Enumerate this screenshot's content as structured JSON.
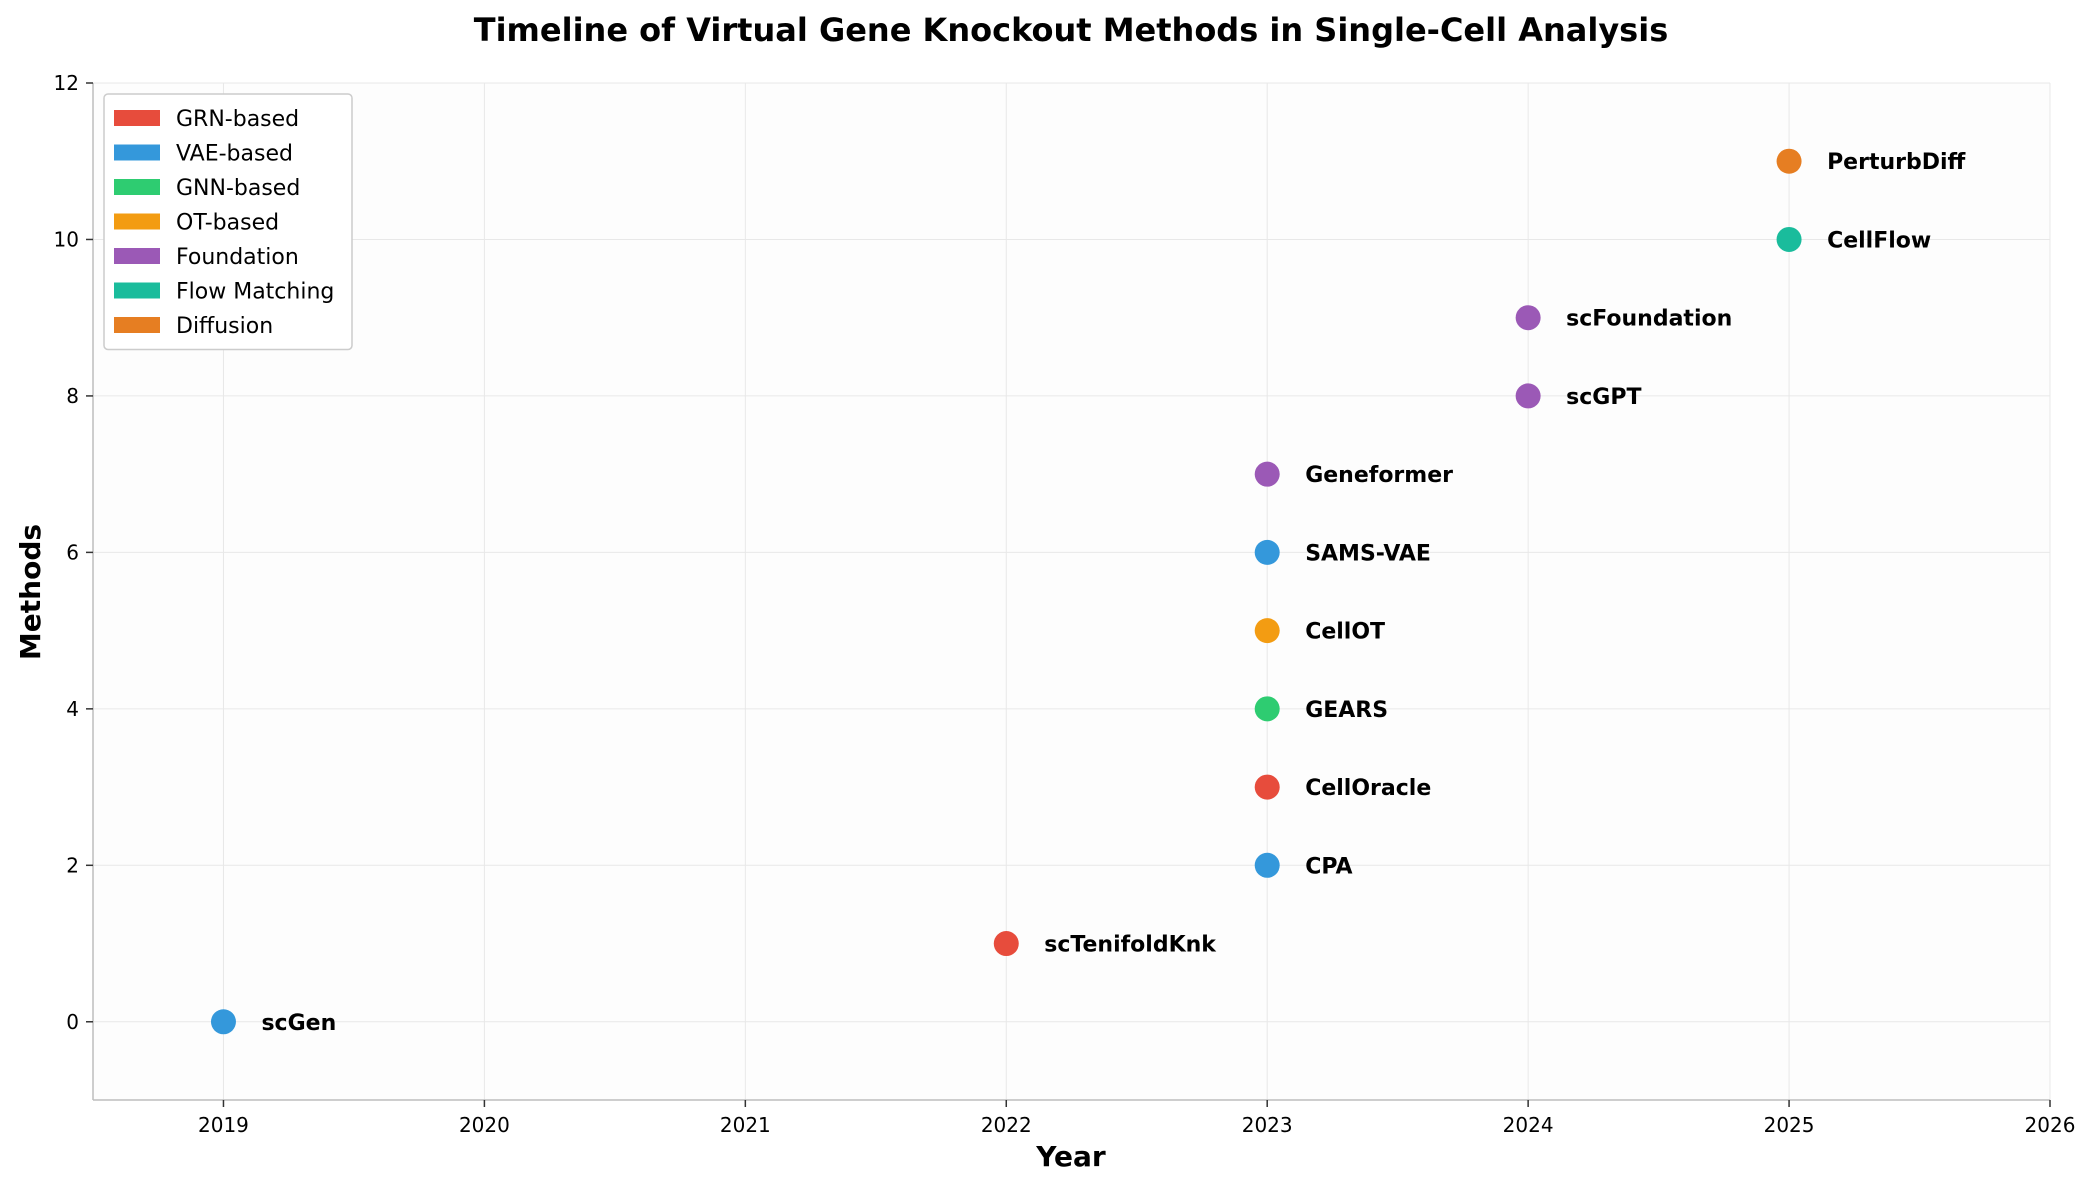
{
  "chart_data": {
    "type": "scatter",
    "title": "Timeline of Virtual Gene Knockout Methods in Single-Cell Analysis",
    "xlabel": "Year",
    "ylabel": "Methods",
    "xlim": [
      2018.5,
      2026
    ],
    "ylim": [
      -1,
      12
    ],
    "xticks": [
      2019,
      2020,
      2021,
      2022,
      2023,
      2024,
      2025,
      2026
    ],
    "yticks": [
      0,
      2,
      4,
      6,
      8,
      10,
      12
    ],
    "grid": true,
    "legend_position": "top-left",
    "categories": [
      {
        "name": "GRN-based",
        "color": "#e74c3c"
      },
      {
        "name": "VAE-based",
        "color": "#3498db"
      },
      {
        "name": "GNN-based",
        "color": "#2ecc71"
      },
      {
        "name": "OT-based",
        "color": "#f39c12"
      },
      {
        "name": "Foundation",
        "color": "#9b59b6"
      },
      {
        "name": "Flow Matching",
        "color": "#1abc9c"
      },
      {
        "name": "Diffusion",
        "color": "#e67e22"
      }
    ],
    "points": [
      {
        "label": "scGen",
        "x": 2019,
        "y": 0,
        "category": "VAE-based"
      },
      {
        "label": "scTenifoldKnk",
        "x": 2022,
        "y": 1,
        "category": "GRN-based"
      },
      {
        "label": "CPA",
        "x": 2023,
        "y": 2,
        "category": "VAE-based"
      },
      {
        "label": "CellOracle",
        "x": 2023,
        "y": 3,
        "category": "GRN-based"
      },
      {
        "label": "GEARS",
        "x": 2023,
        "y": 4,
        "category": "GNN-based"
      },
      {
        "label": "CellOT",
        "x": 2023,
        "y": 5,
        "category": "OT-based"
      },
      {
        "label": "SAMS-VAE",
        "x": 2023,
        "y": 6,
        "category": "VAE-based"
      },
      {
        "label": "Geneformer",
        "x": 2023,
        "y": 7,
        "category": "Foundation"
      },
      {
        "label": "scGPT",
        "x": 2024,
        "y": 8,
        "category": "Foundation"
      },
      {
        "label": "scFoundation",
        "x": 2024,
        "y": 9,
        "category": "Foundation"
      },
      {
        "label": "CellFlow",
        "x": 2025,
        "y": 10,
        "category": "Flow Matching"
      },
      {
        "label": "PerturbDiff",
        "x": 2025,
        "y": 11,
        "category": "Diffusion"
      }
    ]
  }
}
